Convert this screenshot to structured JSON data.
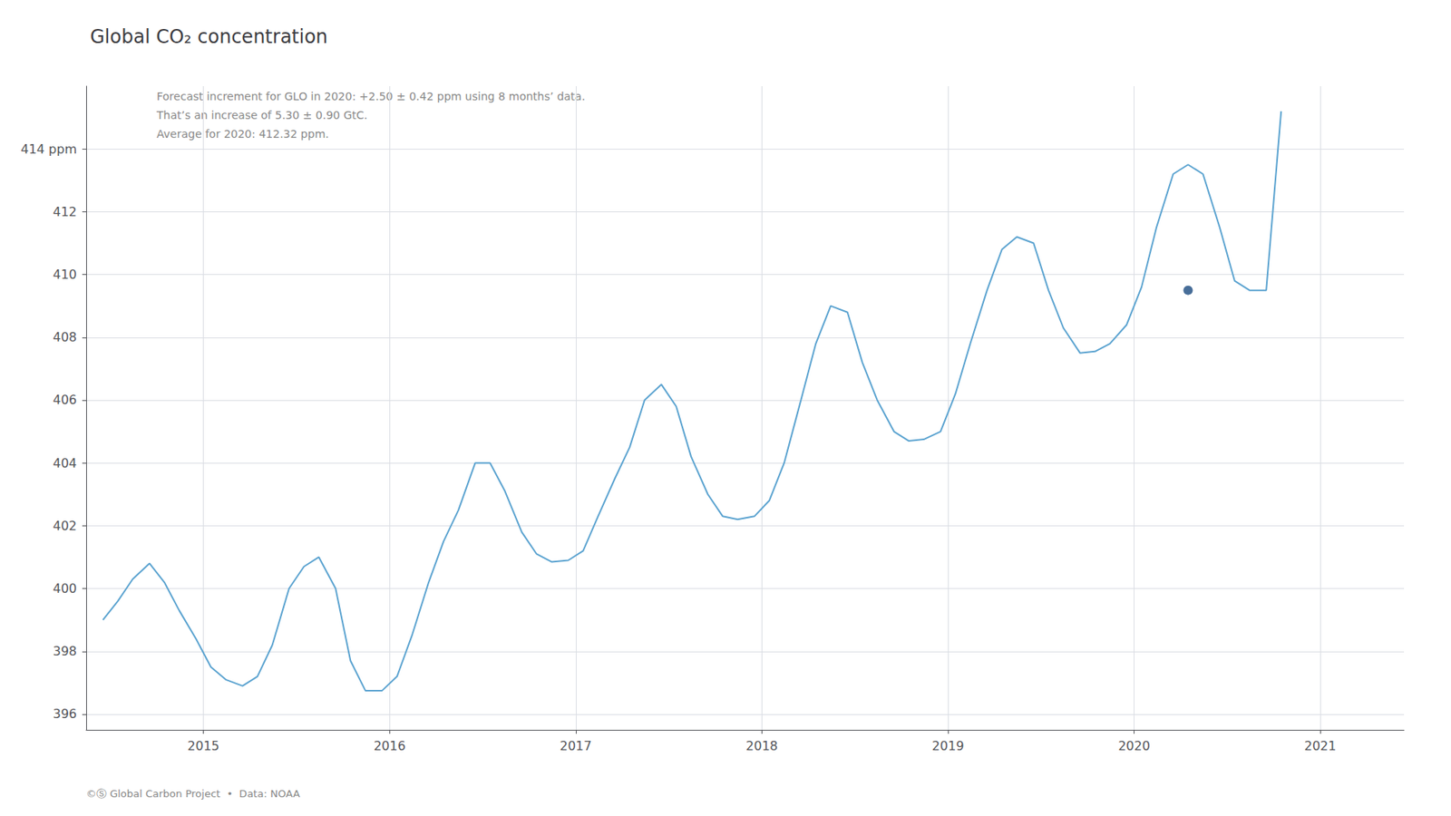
{
  "chart_data": {
    "type": "line",
    "title": "Global CO₂ concentration",
    "annotations": [
      "Forecast increment for GLO in 2020: +2.50 ± 0.42 ppm using 8 months’ data.",
      "That’s an increase of 5.30 ± 0.90 GtC.",
      "Average for 2020: 412.32 ppm."
    ],
    "footer": "©Ⓢ Global Carbon Project  •  Data: NOAA",
    "x": [
      2014.46,
      2014.54,
      2014.62,
      2014.71,
      2014.79,
      2014.87,
      2014.96,
      2015.04,
      2015.12,
      2015.21,
      2015.29,
      2015.37,
      2015.46,
      2015.54,
      2015.62,
      2015.71,
      2015.79,
      2015.87,
      2015.96,
      2016.04,
      2016.12,
      2016.21,
      2016.29,
      2016.37,
      2016.46,
      2016.54,
      2016.62,
      2016.71,
      2016.79,
      2016.87,
      2016.96,
      2017.04,
      2017.12,
      2017.21,
      2017.29,
      2017.37,
      2017.46,
      2017.54,
      2017.62,
      2017.71,
      2017.79,
      2017.87,
      2017.96,
      2018.04,
      2018.12,
      2018.21,
      2018.29,
      2018.37,
      2018.46,
      2018.54,
      2018.62,
      2018.71,
      2018.79,
      2018.87,
      2018.96,
      2019.04,
      2019.12,
      2019.21,
      2019.29,
      2019.37,
      2019.46,
      2019.54,
      2019.62,
      2019.71,
      2019.79,
      2019.87,
      2019.96,
      2020.04,
      2020.12,
      2020.21,
      2020.29,
      2020.37,
      2020.46,
      2020.54,
      2020.62,
      2020.71,
      2020.79
    ],
    "series": [
      {
        "type": "line",
        "color": "#5ba3d0",
        "values": [
          399.0,
          399.6,
          400.3,
          400.8,
          400.2,
          399.3,
          398.4,
          397.5,
          397.1,
          396.9,
          397.2,
          398.2,
          400.0,
          400.7,
          401.0,
          400.0,
          397.7,
          396.75,
          396.75,
          397.2,
          398.5,
          400.2,
          401.5,
          402.5,
          404.0,
          404.0,
          403.1,
          401.8,
          401.1,
          400.85,
          400.9,
          401.2,
          402.3,
          403.5,
          404.5,
          406.0,
          406.5,
          405.8,
          404.2,
          403.0,
          402.3,
          402.2,
          402.3,
          402.8,
          404.0,
          406.0,
          407.8,
          409.0,
          408.8,
          407.2,
          406.0,
          405.0,
          404.7,
          404.75,
          405.0,
          406.2,
          407.8,
          409.5,
          410.8,
          411.2,
          411.0,
          409.5,
          408.3,
          407.5,
          407.55,
          407.8,
          408.4,
          409.6,
          411.5,
          413.2,
          413.5,
          413.2,
          411.5,
          409.8,
          409.5,
          409.5,
          415.2
        ]
      },
      {
        "type": "scatter",
        "marker": "circle",
        "color": "#1a4a80",
        "x": [
          2020.29
        ],
        "values": [
          409.5
        ]
      }
    ],
    "xlim": [
      2014.37,
      2021.45
    ],
    "xticks": [
      2015,
      2016,
      2017,
      2018,
      2019,
      2020,
      2021
    ],
    "ylim": [
      395.5,
      416.0
    ],
    "yticks": [
      396,
      398,
      400,
      402,
      404,
      406,
      408,
      410,
      412,
      {
        "value": 414,
        "label": "414 ppm"
      }
    ],
    "grid": true
  }
}
